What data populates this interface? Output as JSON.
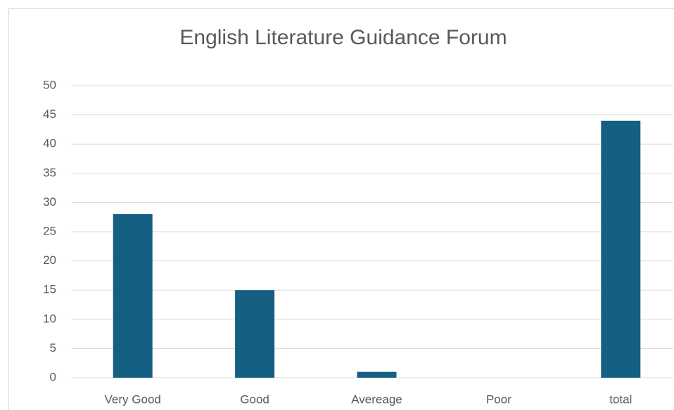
{
  "chart_data": {
    "type": "bar",
    "title": "English Literature Guidance Forum",
    "categories": [
      "Very Good",
      "Good",
      "Avereage",
      "Poor",
      "total"
    ],
    "values": [
      28,
      15,
      1,
      0,
      44
    ],
    "color": "#155f82",
    "ylim": [
      0,
      50
    ],
    "yticks": [
      0,
      5,
      10,
      15,
      20,
      25,
      30,
      35,
      40,
      45,
      50
    ],
    "grid": true
  }
}
